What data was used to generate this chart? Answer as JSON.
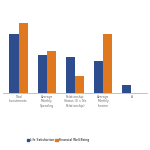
{
  "categories": [
    "Total\nInvestments",
    "Average\nMonthly\nSpending",
    "Relationship\nStatus (0 = No\nRelationship)",
    "Average\nMonthly\nIncome",
    "A"
  ],
  "life_satisfaction": [
    0.28,
    0.18,
    0.17,
    0.15,
    0.04
  ],
  "financial_wellbeing": [
    0.33,
    0.2,
    0.08,
    0.28,
    0.0
  ],
  "bar_color_life": "#2e4d8e",
  "bar_color_financial": "#e07820",
  "background_color": "#ffffff",
  "legend_life": "Life Satisfaction",
  "legend_financial": "Financial Well-Being",
  "ylim": [
    0,
    0.42
  ],
  "bar_width": 0.32,
  "grid_color": "#d8d8d8",
  "spine_color": "#aaaaaa",
  "tick_color": "#666666"
}
